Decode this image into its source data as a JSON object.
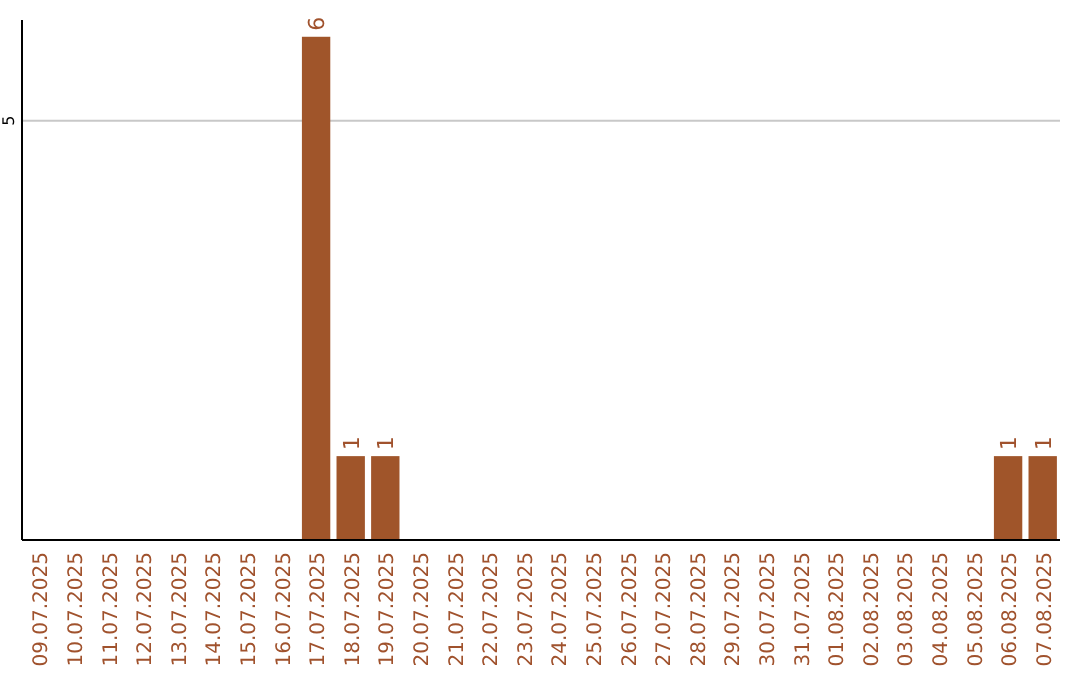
{
  "chart_data": {
    "type": "bar",
    "categories": [
      "09.07.2025",
      "10.07.2025",
      "11.07.2025",
      "12.07.2025",
      "13.07.2025",
      "14.07.2025",
      "15.07.2025",
      "16.07.2025",
      "17.07.2025",
      "18.07.2025",
      "19.07.2025",
      "20.07.2025",
      "21.07.2025",
      "22.07.2025",
      "23.07.2025",
      "24.07.2025",
      "25.07.2025",
      "26.07.2025",
      "27.07.2025",
      "28.07.2025",
      "29.07.2025",
      "30.07.2025",
      "31.07.2025",
      "01.08.2025",
      "02.08.2025",
      "03.08.2025",
      "04.08.2025",
      "05.08.2025",
      "06.08.2025",
      "07.08.2025"
    ],
    "values": [
      null,
      null,
      null,
      null,
      null,
      null,
      null,
      null,
      6,
      1,
      1,
      null,
      null,
      null,
      null,
      null,
      null,
      null,
      null,
      null,
      null,
      null,
      null,
      null,
      null,
      null,
      null,
      null,
      1,
      1
    ],
    "color": "#a0552a",
    "ylim": [
      0,
      6.2
    ],
    "yticks": [
      5
    ],
    "grid": "y",
    "data_labels": true
  }
}
